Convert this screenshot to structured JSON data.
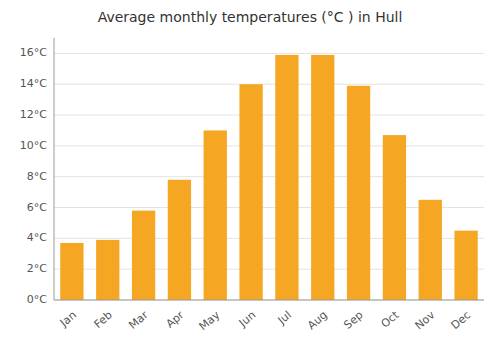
{
  "chart_data": {
    "type": "bar",
    "title": "Average monthly temperatures (°C ) in Hull",
    "categories": [
      "Jan",
      "Feb",
      "Mar",
      "Apr",
      "May",
      "Jun",
      "Jul",
      "Aug",
      "Sep",
      "Oct",
      "Nov",
      "Dec"
    ],
    "values": [
      3.7,
      3.9,
      5.8,
      7.8,
      11.0,
      14.0,
      15.9,
      15.9,
      13.9,
      10.7,
      6.5,
      4.5
    ],
    "color": "#F5A623",
    "ylim": [
      0,
      17
    ],
    "yticks": [
      {
        "value": 0,
        "label": "0°C"
      },
      {
        "value": 2,
        "label": "2°C"
      },
      {
        "value": 4,
        "label": "4°C"
      },
      {
        "value": 6,
        "label": "6°C"
      },
      {
        "value": 8,
        "label": "8°C"
      },
      {
        "value": 10,
        "label": "10°C"
      },
      {
        "value": 12,
        "label": "12°C"
      },
      {
        "value": 14,
        "label": "14°C"
      },
      {
        "value": 16,
        "label": "16°C"
      }
    ],
    "grid": true
  }
}
